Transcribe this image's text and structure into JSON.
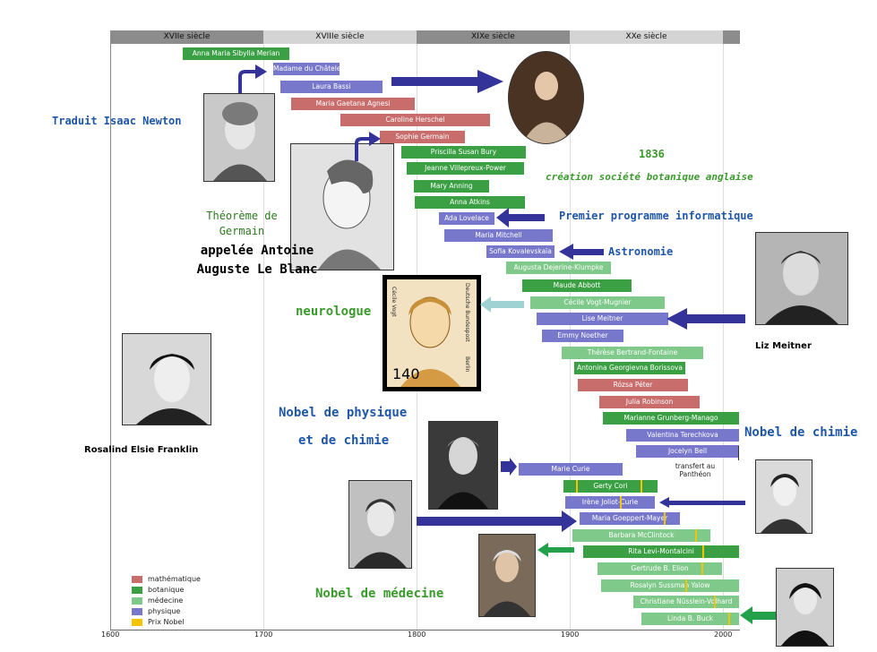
{
  "centuries": [
    "XVIIe siècle",
    "XVIIIe siècle",
    "XIXe siècle",
    "XXe siècle"
  ],
  "axis_ticks": [
    "1600",
    "1700",
    "1800",
    "1900",
    "2000"
  ],
  "colors": {
    "mathematique": "#c96c6c",
    "botanique": "#3aa043",
    "medecine": "#7fc98a",
    "physique": "#7777cc",
    "prix_nobel": "#f5c400",
    "arrow": "#333399",
    "annotation_blue": "#1f56a8",
    "annotation_green": "#3b9a2c"
  },
  "women": [
    {
      "name": "Anna Maria Sibylla Merian",
      "field": "botanique"
    },
    {
      "name": "Madame du Châtelet",
      "field": "physique"
    },
    {
      "name": "Laura Bassi",
      "field": "physique"
    },
    {
      "name": "Maria Gaetana Agnesi",
      "field": "mathematique"
    },
    {
      "name": "Caroline Herschel",
      "field": "mathematique"
    },
    {
      "name": "Sophie Germain",
      "field": "mathematique"
    },
    {
      "name": "Priscilla Susan Bury",
      "field": "botanique"
    },
    {
      "name": "Jeanne Villepreux-Power",
      "field": "botanique"
    },
    {
      "name": "Mary Anning",
      "field": "botanique"
    },
    {
      "name": "Anna Atkins",
      "field": "botanique"
    },
    {
      "name": "Ada Lovelace",
      "field": "physique"
    },
    {
      "name": "Maria Mitchell",
      "field": "physique"
    },
    {
      "name": "Sofia Kovalevskaïa",
      "field": "physique"
    },
    {
      "name": "Augusta Dejerine-Klumpke",
      "field": "medecine"
    },
    {
      "name": "Maude Abbott",
      "field": "botanique"
    },
    {
      "name": "Cécile Vogt-Mugnier",
      "field": "medecine"
    },
    {
      "name": "Lise Meitner",
      "field": "physique"
    },
    {
      "name": "Emmy Noether",
      "field": "physique"
    },
    {
      "name": "Thérèse Bertrand-Fontaine",
      "field": "medecine"
    },
    {
      "name": "Antonina Georgievna Borissova",
      "field": "botanique"
    },
    {
      "name": "Rózsa Péter",
      "field": "mathematique"
    },
    {
      "name": "Julia Robinson",
      "field": "mathematique"
    },
    {
      "name": "Marianne Grunberg-Manago",
      "field": "botanique"
    },
    {
      "name": "Valentina Terechkova",
      "field": "physique"
    },
    {
      "name": "Jocelyn Bell",
      "field": "physique"
    },
    {
      "name": "Marie Curie",
      "field": "physique"
    },
    {
      "name": "Gerty Cori",
      "field": "botanique"
    },
    {
      "name": "Irène Joliot-Curie",
      "field": "physique"
    },
    {
      "name": "Maria Goeppert-Mayer",
      "field": "physique"
    },
    {
      "name": "Barbara McClintock",
      "field": "medecine"
    },
    {
      "name": "Rita Levi-Montalcini",
      "field": "botanique"
    },
    {
      "name": "Gertrude B. Elion",
      "field": "medecine"
    },
    {
      "name": "Rosalyn Sussman Yalow",
      "field": "medecine"
    },
    {
      "name": "Christiane Nüsslein-Volhard",
      "field": "medecine"
    },
    {
      "name": "Linda B. Buck",
      "field": "medecine"
    }
  ],
  "annotations": {
    "traduit": "Traduit Isaac Newton",
    "theoreme": "Théorème de Germain",
    "appelee": "appelée Antoine Auguste Le Blanc",
    "year_1836": "1836",
    "creation": "création société botanique anglaise",
    "premier": "Premier programme informatique",
    "astronomie": "Astronomie",
    "neurologue": "neurologue",
    "liz": "Liz Meitner",
    "rosalind": "Rosalind Elsie Franklin",
    "nobel_phys_1": "Nobel de physique",
    "nobel_phys_2": "et de chimie",
    "nobel_chimie": "Nobel de chimie",
    "nobel_medecine": "Nobel de médecine",
    "transfert": "transfert au Panthéon"
  },
  "stamp": {
    "value": "140",
    "name": "Cécile Vogt",
    "country": "Deutsche Bundespost",
    "city": "Berlin"
  },
  "legend": [
    {
      "label": "mathématique",
      "color": "#c96c6c"
    },
    {
      "label": "botanique",
      "color": "#3aa043"
    },
    {
      "label": "médecine",
      "color": "#7fc98a"
    },
    {
      "label": "physique",
      "color": "#7777cc"
    },
    {
      "label": "Prix Nobel",
      "color": "#f5c400"
    }
  ]
}
